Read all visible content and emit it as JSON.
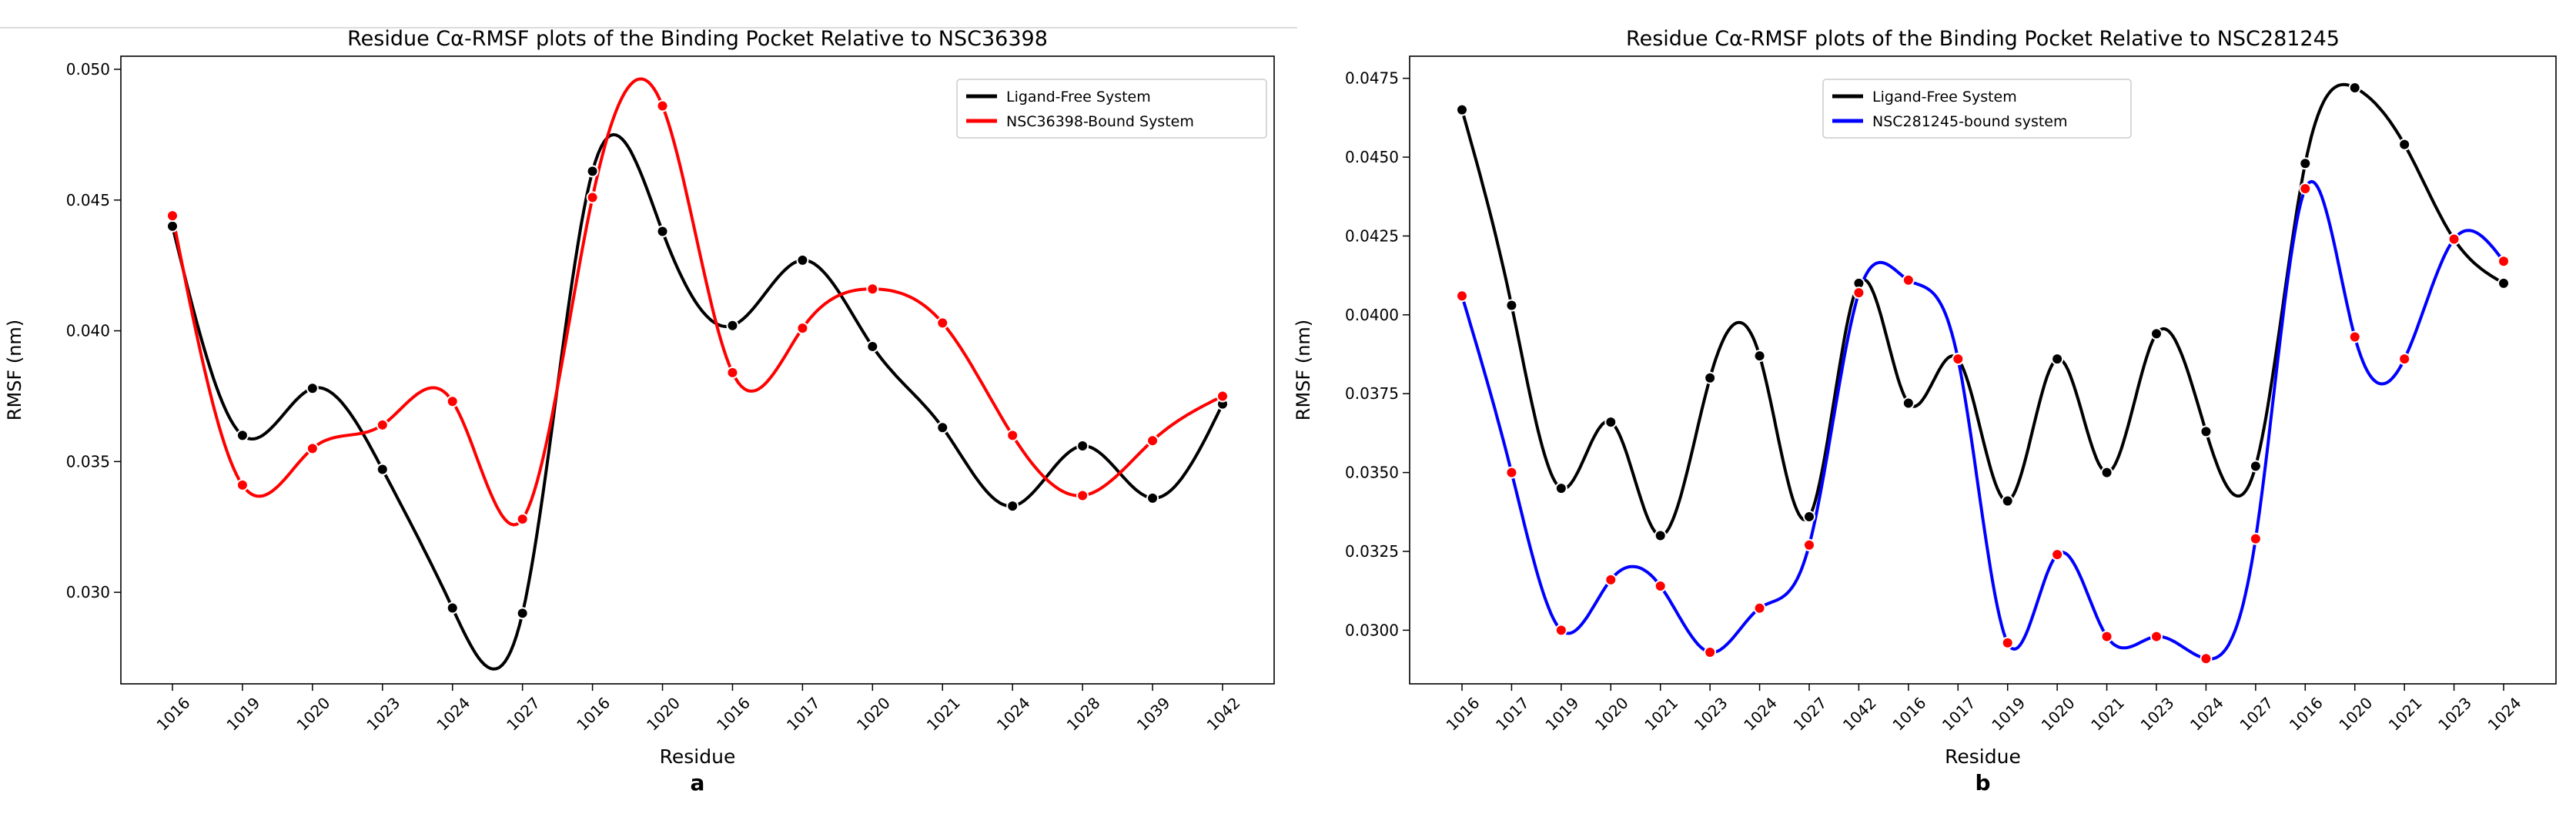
{
  "chart_data": [
    {
      "type": "line",
      "title": "Residue Cα-RMSF plots of the Binding Pocket Relative to NSC36398",
      "xlabel": "Residue",
      "ylabel": "RMSF (nm)",
      "panel_label": "a",
      "categories": [
        "1016",
        "1019",
        "1020",
        "1023",
        "1024",
        "1027",
        "1016",
        "1020",
        "1016",
        "1017",
        "1020",
        "1021",
        "1024",
        "1028",
        "1039",
        "1042"
      ],
      "ylim": [
        0.0265,
        0.0505
      ],
      "yticks": [
        0.03,
        0.035,
        0.04,
        0.045,
        0.05
      ],
      "ytick_labels": [
        "0.030",
        "0.035",
        "0.040",
        "0.045",
        "0.050"
      ],
      "legend_position": "top-right",
      "series": [
        {
          "name": "Ligand-Free System",
          "color": "#000000",
          "marker_color": "#000000",
          "values": [
            0.044,
            0.036,
            0.0378,
            0.0347,
            0.0294,
            0.0292,
            0.0461,
            0.0438,
            0.0402,
            0.0427,
            0.0394,
            0.0363,
            0.0333,
            0.0356,
            0.0336,
            0.0372
          ]
        },
        {
          "name": "NSC36398-Bound System",
          "color": "#ff0000",
          "marker_color": "#ff0000",
          "values": [
            0.0444,
            0.0341,
            0.0355,
            0.0364,
            0.0373,
            0.0328,
            0.0451,
            0.0486,
            0.0384,
            0.0401,
            0.0416,
            0.0403,
            0.036,
            0.0337,
            0.0358,
            0.0375
          ]
        }
      ]
    },
    {
      "type": "line",
      "title": "Residue Cα-RMSF plots of the Binding Pocket Relative to NSC281245",
      "xlabel": "Residue",
      "ylabel": "RMSF (nm)",
      "panel_label": "b",
      "categories": [
        "1016",
        "1017",
        "1019",
        "1020",
        "1021",
        "1023",
        "1024",
        "1027",
        "1042",
        "1016",
        "1017",
        "1019",
        "1020",
        "1021",
        "1023",
        "1024",
        "1027",
        "1016",
        "1020",
        "1021",
        "1023",
        "1024"
      ],
      "ylim": [
        0.0283,
        0.0482
      ],
      "yticks": [
        0.03,
        0.0325,
        0.035,
        0.0375,
        0.04,
        0.0425,
        0.045,
        0.0475
      ],
      "ytick_labels": [
        "0.0300",
        "0.0325",
        "0.0350",
        "0.0375",
        "0.0400",
        "0.0425",
        "0.0450",
        "0.0475"
      ],
      "legend_position": "top-left",
      "series": [
        {
          "name": "Ligand-Free System",
          "color": "#000000",
          "marker_color": "#000000",
          "values": [
            0.0465,
            0.0403,
            0.0345,
            0.0366,
            0.033,
            0.038,
            0.0387,
            0.0336,
            0.041,
            0.0372,
            0.0386,
            0.0341,
            0.0386,
            0.035,
            0.0394,
            0.0363,
            0.0352,
            0.0448,
            0.0472,
            0.0454,
            0.0424,
            0.041
          ]
        },
        {
          "name": "NSC281245-bound system",
          "color": "#0000ff",
          "marker_color": "#ff0000",
          "values": [
            0.0406,
            0.035,
            0.03,
            0.0316,
            0.0314,
            0.0293,
            0.0307,
            0.0327,
            0.0407,
            0.0411,
            0.0386,
            0.0296,
            0.0324,
            0.0298,
            0.0298,
            0.0291,
            0.0329,
            0.044,
            0.0393,
            0.0386,
            0.0424,
            0.0417
          ]
        }
      ]
    }
  ]
}
